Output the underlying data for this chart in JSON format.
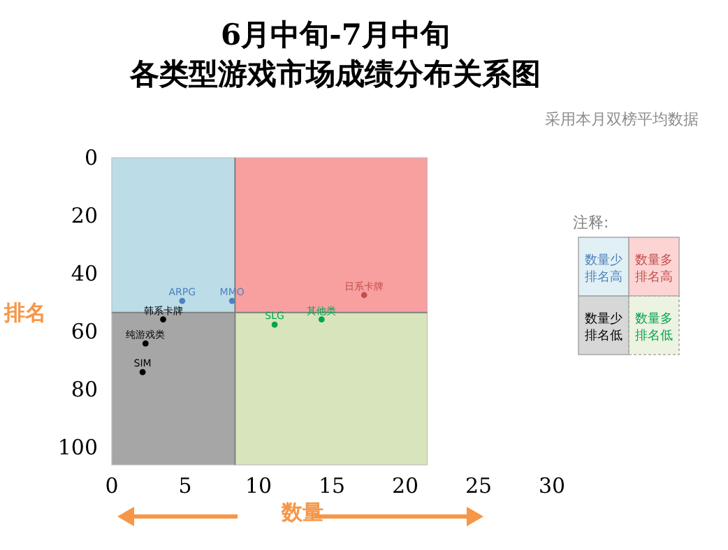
{
  "chart_data": {
    "type": "scatter",
    "title": "6月中旬-7月中旬",
    "subtitle": "各类型游戏市场成绩分布关系图",
    "xlabel": "数量",
    "ylabel": "排名",
    "xlim": [
      0,
      30
    ],
    "xticks": [
      0,
      5,
      10,
      15,
      20,
      25,
      30
    ],
    "ylim": [
      106,
      0
    ],
    "yticks": [
      0,
      20,
      40,
      60,
      80,
      100
    ],
    "marker": "circle",
    "series": [
      {
        "name": "ARPG",
        "color": "#4f81bd",
        "x": [
          4.8
        ],
        "values": [
          49.4
        ]
      },
      {
        "name": "MMO",
        "color": "#4f81bd",
        "x": [
          8.2
        ],
        "values": [
          49.4
        ]
      },
      {
        "name": "日系卡牌",
        "color": "#c0504d",
        "x": [
          17.2
        ],
        "values": [
          47.4
        ]
      },
      {
        "name": "韩系卡牌",
        "color": "#000000",
        "x": [
          3.5
        ],
        "values": [
          55.8
        ]
      },
      {
        "name": "SLG",
        "color": "#00a550",
        "x": [
          11.1
        ],
        "values": [
          57.6
        ]
      },
      {
        "name": "其他类",
        "color": "#00a550",
        "x": [
          14.3
        ],
        "values": [
          55.8
        ]
      },
      {
        "name": "纯游戏类",
        "color": "#000000",
        "x": [
          2.3
        ],
        "values": [
          64.1
        ]
      },
      {
        "name": "SIM",
        "color": "#000000",
        "x": [
          2.1
        ],
        "values": [
          74
        ]
      }
    ],
    "ref_lines": [
      {
        "axis": "x",
        "value": 8.4,
        "color": "#7f7f7f"
      },
      {
        "axis": "y",
        "value": 53.4,
        "color": "#7f7f7f"
      }
    ],
    "bands": [
      {
        "axis": "x",
        "from": 0,
        "to": 8.4,
        "color": "#bcdde8"
      },
      {
        "axis": "x",
        "from": 8.4,
        "to": 21.5,
        "color": "#f8a0a0"
      },
      {
        "axis": "x",
        "from": 0,
        "to": 8.4,
        "color": "#a6a6a6"
      },
      {
        "axis": "x",
        "from": 8.4,
        "to": 21.5,
        "color": "#d8e4bc"
      }
    ],
    "annotations": [
      "采用本月双榜平均数据",
      "注释:",
      "数量少排名高",
      "数量多排名高",
      "数量少排名低",
      "数量多排名低"
    ]
  }
}
